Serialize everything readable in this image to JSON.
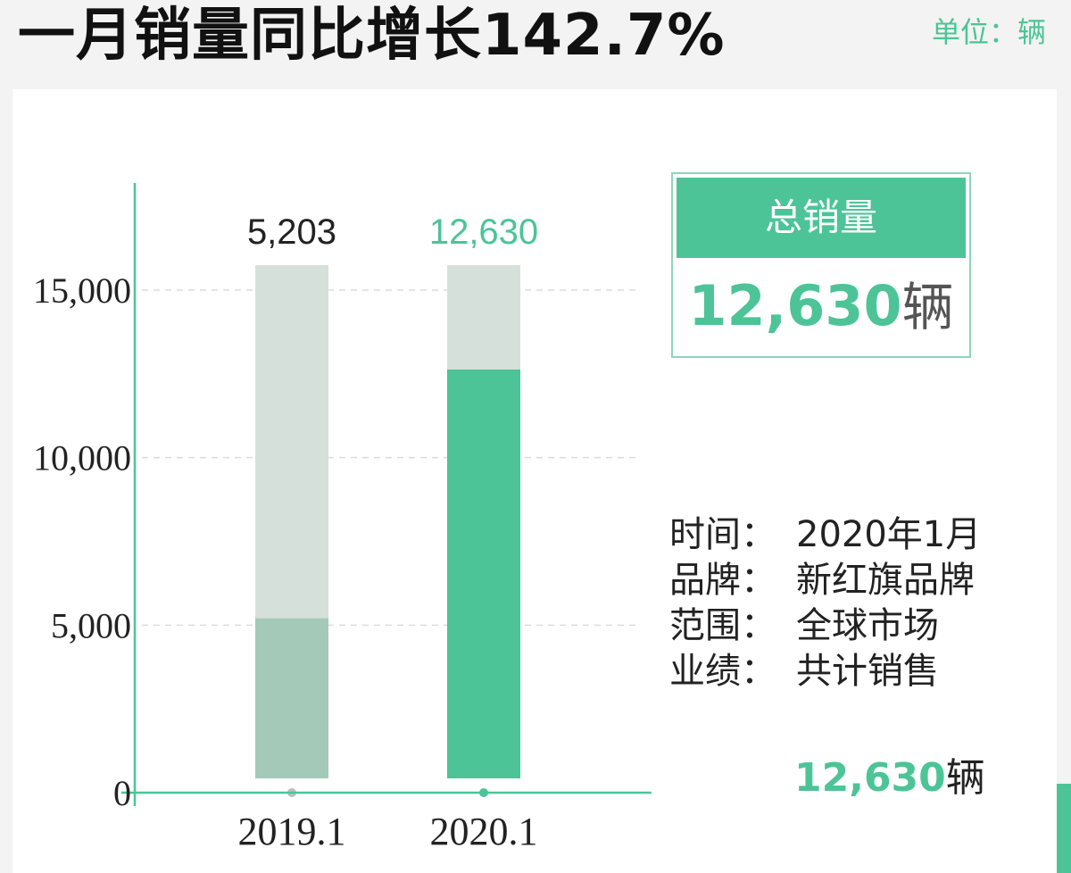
{
  "title": "一月销量同比增长142.7%",
  "unit_text": "单位：辆",
  "colors": {
    "accent": "#4cc497",
    "bar_2019": "#a4c9b9",
    "bar_bg": "#d6e0da",
    "background": "#f3f3f3"
  },
  "chart_data": {
    "type": "bar",
    "title": "",
    "xlabel": "",
    "ylabel": "",
    "categories": [
      "2019.1",
      "2020.1"
    ],
    "values": [
      5203,
      12630
    ],
    "value_labels": [
      "5,203",
      "12,630"
    ],
    "yticks": [
      "0",
      "5,000",
      "10,000",
      "15,000"
    ],
    "ytick_values": [
      0,
      5000,
      10000,
      15000
    ],
    "ylim": [
      0,
      18000
    ],
    "grid": true,
    "legend": "none"
  },
  "total": {
    "heading": "总销量",
    "value": "12,630",
    "unit": "辆"
  },
  "info": {
    "rows": [
      {
        "key": "时间：",
        "value": "2020年1月"
      },
      {
        "key": "品牌：",
        "value": "新红旗品牌"
      },
      {
        "key": "范围：",
        "value": "全球市场"
      },
      {
        "key": "业绩：",
        "value": "共计销售"
      }
    ],
    "sales_value": "12,630",
    "sales_unit": "辆"
  }
}
